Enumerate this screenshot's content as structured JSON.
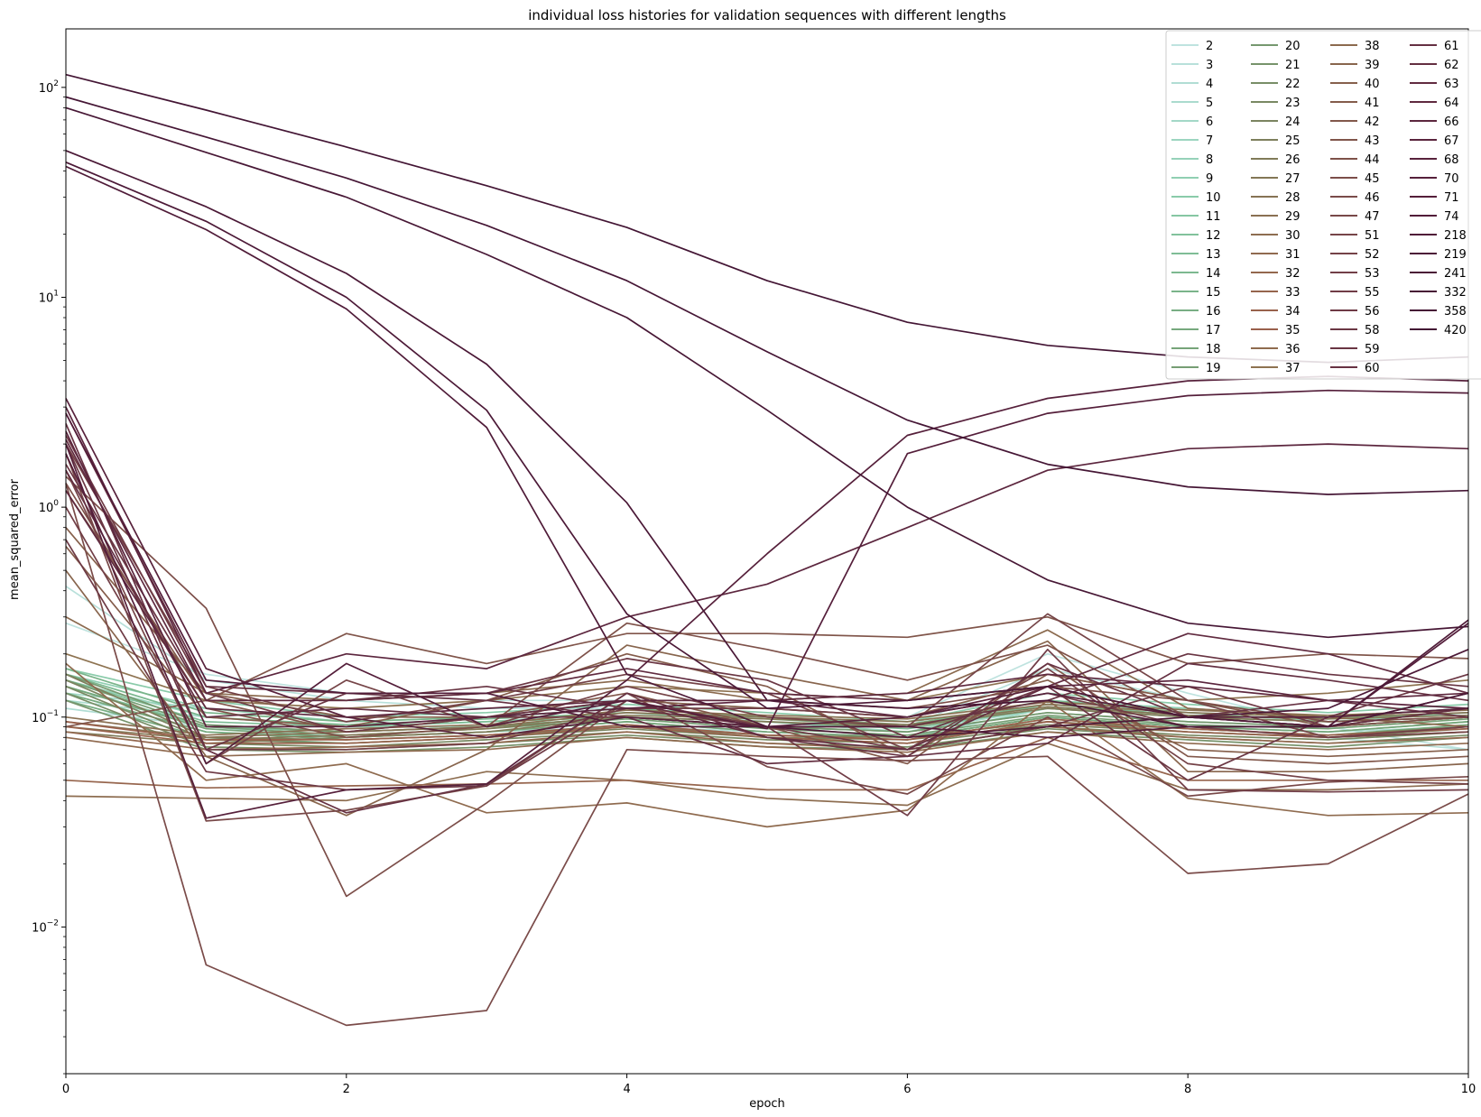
{
  "chart_data": {
    "type": "line",
    "title": "individual loss histories for validation sequences with different lengths",
    "xlabel": "epoch",
    "ylabel": "mean_squared_error",
    "x": [
      0,
      1,
      2,
      3,
      4,
      5,
      6,
      7,
      8,
      9,
      10
    ],
    "xlim": [
      0,
      10
    ],
    "ylim": [
      0.002,
      190
    ],
    "yscale": "log",
    "xticks": [
      "0",
      "2",
      "4",
      "6",
      "8",
      "10"
    ],
    "yticks": [
      "10^-2",
      "10^-1",
      "10^0",
      "10^1",
      "10^2"
    ],
    "grid": false,
    "legend_position": "top-right",
    "legend_columns": 4,
    "series": [
      {
        "name": "2",
        "color": "#bfe3df",
        "values": [
          0.28,
          0.16,
          0.13,
          0.12,
          0.12,
          0.11,
          0.1,
          0.2,
          0.13,
          0.09,
          0.07
        ]
      },
      {
        "name": "3",
        "color": "#b8e0da",
        "values": [
          0.42,
          0.15,
          0.12,
          0.11,
          0.11,
          0.1,
          0.09,
          0.17,
          0.12,
          0.08,
          0.07
        ]
      },
      {
        "name": "4",
        "color": "#b1ddd4",
        "values": [
          0.11,
          0.09,
          0.08,
          0.085,
          0.09,
          0.085,
          0.08,
          0.1,
          0.09,
          0.085,
          0.09
        ]
      },
      {
        "name": "5",
        "color": "#aadbce",
        "values": [
          0.12,
          0.1,
          0.09,
          0.09,
          0.1,
          0.09,
          0.085,
          0.11,
          0.1,
          0.09,
          0.1
        ]
      },
      {
        "name": "6",
        "color": "#a3d8c7",
        "values": [
          0.13,
          0.11,
          0.1,
          0.1,
          0.11,
          0.1,
          0.09,
          0.12,
          0.11,
          0.1,
          0.11
        ]
      },
      {
        "name": "7",
        "color": "#9cd5c0",
        "values": [
          0.14,
          0.09,
          0.085,
          0.09,
          0.1,
          0.09,
          0.08,
          0.11,
          0.1,
          0.09,
          0.1
        ]
      },
      {
        "name": "8",
        "color": "#96d2b9",
        "values": [
          0.15,
          0.1,
          0.09,
          0.095,
          0.105,
          0.095,
          0.085,
          0.115,
          0.105,
          0.095,
          0.105
        ]
      },
      {
        "name": "9",
        "color": "#90cfb2",
        "values": [
          0.16,
          0.11,
          0.095,
          0.1,
          0.11,
          0.1,
          0.09,
          0.12,
          0.11,
          0.1,
          0.11
        ]
      },
      {
        "name": "10",
        "color": "#8acbaa",
        "values": [
          0.17,
          0.12,
          0.1,
          0.105,
          0.115,
          0.105,
          0.095,
          0.13,
          0.115,
          0.105,
          0.115
        ]
      },
      {
        "name": "11",
        "color": "#86c7a3",
        "values": [
          0.13,
          0.085,
          0.08,
          0.085,
          0.095,
          0.085,
          0.08,
          0.1,
          0.09,
          0.085,
          0.095
        ]
      },
      {
        "name": "12",
        "color": "#82c29c",
        "values": [
          0.14,
          0.09,
          0.085,
          0.09,
          0.1,
          0.09,
          0.085,
          0.105,
          0.095,
          0.09,
          0.1
        ]
      },
      {
        "name": "13",
        "color": "#7fbd96",
        "values": [
          0.15,
          0.095,
          0.09,
          0.095,
          0.1,
          0.095,
          0.088,
          0.11,
          0.1,
          0.095,
          0.1
        ]
      },
      {
        "name": "14",
        "color": "#7cb890",
        "values": [
          0.16,
          0.1,
          0.092,
          0.098,
          0.105,
          0.098,
          0.09,
          0.115,
          0.102,
          0.098,
          0.105
        ]
      },
      {
        "name": "15",
        "color": "#7ab48a",
        "values": [
          0.17,
          0.105,
          0.095,
          0.1,
          0.11,
          0.1,
          0.092,
          0.12,
          0.105,
          0.1,
          0.11
        ]
      },
      {
        "name": "16",
        "color": "#78ae84",
        "values": [
          0.12,
          0.08,
          0.075,
          0.08,
          0.09,
          0.08,
          0.075,
          0.095,
          0.085,
          0.08,
          0.09
        ]
      },
      {
        "name": "17",
        "color": "#77a97e",
        "values": [
          0.13,
          0.085,
          0.078,
          0.082,
          0.092,
          0.082,
          0.078,
          0.098,
          0.088,
          0.082,
          0.092
        ]
      },
      {
        "name": "18",
        "color": "#76a479",
        "values": [
          0.14,
          0.088,
          0.08,
          0.085,
          0.095,
          0.085,
          0.08,
          0.1,
          0.09,
          0.085,
          0.095
        ]
      },
      {
        "name": "19",
        "color": "#769e74",
        "values": [
          0.15,
          0.09,
          0.082,
          0.088,
          0.098,
          0.088,
          0.082,
          0.102,
          0.092,
          0.088,
          0.098
        ]
      },
      {
        "name": "20",
        "color": "#76986f",
        "values": [
          0.16,
          0.092,
          0.085,
          0.09,
          0.1,
          0.09,
          0.085,
          0.105,
          0.095,
          0.09,
          0.1
        ]
      },
      {
        "name": "21",
        "color": "#77936b",
        "values": [
          0.12,
          0.07,
          0.068,
          0.072,
          0.08,
          0.072,
          0.07,
          0.085,
          0.078,
          0.072,
          0.08
        ]
      },
      {
        "name": "22",
        "color": "#788e67",
        "values": [
          0.13,
          0.072,
          0.07,
          0.075,
          0.082,
          0.075,
          0.072,
          0.088,
          0.08,
          0.075,
          0.082
        ]
      },
      {
        "name": "23",
        "color": "#798963",
        "values": [
          0.14,
          0.075,
          0.072,
          0.078,
          0.085,
          0.078,
          0.075,
          0.09,
          0.082,
          0.078,
          0.085
        ]
      },
      {
        "name": "24",
        "color": "#7b8460",
        "values": [
          0.15,
          0.078,
          0.075,
          0.08,
          0.088,
          0.08,
          0.078,
          0.092,
          0.085,
          0.08,
          0.088
        ]
      },
      {
        "name": "25",
        "color": "#7d7f5c",
        "values": [
          0.16,
          0.08,
          0.078,
          0.082,
          0.09,
          0.082,
          0.08,
          0.095,
          0.088,
          0.082,
          0.09
        ]
      },
      {
        "name": "26",
        "color": "#807b59",
        "values": [
          0.085,
          0.075,
          0.08,
          0.085,
          0.1,
          0.095,
          0.09,
          0.11,
          0.1,
          0.095,
          0.1
        ]
      },
      {
        "name": "27",
        "color": "#837756",
        "values": [
          0.09,
          0.078,
          0.082,
          0.088,
          0.102,
          0.098,
          0.092,
          0.112,
          0.102,
          0.098,
          0.102
        ]
      },
      {
        "name": "28",
        "color": "#867354",
        "values": [
          0.095,
          0.08,
          0.085,
          0.09,
          0.105,
          0.1,
          0.095,
          0.115,
          0.105,
          0.1,
          0.105
        ]
      },
      {
        "name": "29",
        "color": "#8a7052",
        "values": [
          0.1,
          0.082,
          0.088,
          0.092,
          0.108,
          0.102,
          0.098,
          0.118,
          0.108,
          0.102,
          0.108
        ]
      },
      {
        "name": "30",
        "color": "#8d6d50",
        "values": [
          0.042,
          0.041,
          0.04,
          0.055,
          0.05,
          0.041,
          0.038,
          0.075,
          0.045,
          0.045,
          0.048
        ]
      },
      {
        "name": "31",
        "color": "#906a4f",
        "values": [
          0.08,
          0.065,
          0.068,
          0.07,
          0.08,
          0.072,
          0.068,
          0.085,
          0.075,
          0.07,
          0.075
        ]
      },
      {
        "name": "32",
        "color": "#93674e",
        "values": [
          0.085,
          0.07,
          0.072,
          0.075,
          0.085,
          0.075,
          0.07,
          0.09,
          0.08,
          0.075,
          0.08
        ]
      },
      {
        "name": "33",
        "color": "#96654d",
        "values": [
          0.05,
          0.046,
          0.047,
          0.048,
          0.05,
          0.045,
          0.045,
          0.08,
          0.05,
          0.05,
          0.05
        ]
      },
      {
        "name": "34",
        "color": "#98624c",
        "values": [
          0.09,
          0.075,
          0.075,
          0.08,
          0.09,
          0.08,
          0.075,
          0.095,
          0.085,
          0.08,
          0.085
        ]
      },
      {
        "name": "35",
        "color": "#9a604c",
        "values": [
          0.095,
          0.078,
          0.078,
          0.082,
          0.092,
          0.082,
          0.078,
          0.098,
          0.088,
          0.082,
          0.088
        ]
      },
      {
        "name": "36",
        "color": "#8f6b4f",
        "values": [
          0.18,
          0.05,
          0.06,
          0.035,
          0.039,
          0.03,
          0.036,
          0.12,
          0.041,
          0.034,
          0.035
        ]
      },
      {
        "name": "37",
        "color": "#8e7351",
        "values": [
          0.2,
          0.12,
          0.11,
          0.12,
          0.14,
          0.13,
          0.12,
          0.16,
          0.12,
          0.13,
          0.15
        ]
      },
      {
        "name": "38",
        "color": "#8b6a4e",
        "values": [
          0.3,
          0.13,
          0.12,
          0.13,
          0.15,
          0.12,
          0.13,
          0.26,
          0.11,
          0.1,
          0.09
        ]
      },
      {
        "name": "39",
        "color": "#88654d",
        "values": [
          0.5,
          0.065,
          0.034,
          0.07,
          0.22,
          0.16,
          0.12,
          0.23,
          0.055,
          0.055,
          0.06
        ]
      },
      {
        "name": "40",
        "color": "#86604c",
        "values": [
          0.8,
          0.13,
          0.1,
          0.1,
          0.12,
          0.11,
          0.1,
          0.15,
          0.07,
          0.065,
          0.07
        ]
      },
      {
        "name": "41",
        "color": "#845c4b",
        "values": [
          0.65,
          0.1,
          0.09,
          0.12,
          0.2,
          0.14,
          0.065,
          0.16,
          0.12,
          0.09,
          0.11
        ]
      },
      {
        "name": "42",
        "color": "#82584b",
        "values": [
          1.2,
          0.12,
          0.085,
          0.1,
          0.13,
          0.09,
          0.06,
          0.18,
          0.065,
          0.06,
          0.065
        ]
      },
      {
        "name": "43",
        "color": "#80554a",
        "values": [
          0.09,
          0.12,
          0.25,
          0.18,
          0.25,
          0.25,
          0.24,
          0.3,
          0.18,
          0.2,
          0.19
        ]
      },
      {
        "name": "44",
        "color": "#7e5149",
        "values": [
          1.3,
          0.11,
          0.08,
          0.09,
          0.28,
          0.21,
          0.15,
          0.22,
          0.1,
          0.09,
          0.1
        ]
      },
      {
        "name": "45",
        "color": "#7c4e49",
        "values": [
          1.4,
          0.33,
          0.014,
          0.039,
          0.12,
          0.12,
          0.11,
          0.14,
          0.12,
          0.095,
          0.1
        ]
      },
      {
        "name": "46",
        "color": "#7a4b49",
        "values": [
          1.3,
          0.0066,
          0.0034,
          0.004,
          0.07,
          0.065,
          0.062,
          0.065,
          0.018,
          0.02,
          0.043
        ]
      },
      {
        "name": "47",
        "color": "#784848",
        "values": [
          1.8,
          0.032,
          0.036,
          0.047,
          0.13,
          0.058,
          0.043,
          0.1,
          0.042,
          0.049,
          0.052
        ]
      },
      {
        "name": "51",
        "color": "#764548",
        "values": [
          1.5,
          0.06,
          0.15,
          0.09,
          0.14,
          0.1,
          0.09,
          0.31,
          0.12,
          0.08,
          0.085
        ]
      },
      {
        "name": "52",
        "color": "#744247",
        "values": [
          2.0,
          0.14,
          0.095,
          0.12,
          0.16,
          0.13,
          0.07,
          0.17,
          0.06,
          0.05,
          0.048
        ]
      },
      {
        "name": "53",
        "color": "#723f47",
        "values": [
          1.0,
          0.07,
          0.07,
          0.075,
          0.11,
          0.11,
          0.1,
          0.13,
          0.09,
          0.08,
          0.09
        ]
      },
      {
        "name": "55",
        "color": "#703c46",
        "values": [
          2.2,
          0.13,
          0.085,
          0.1,
          0.1,
          0.09,
          0.034,
          0.21,
          0.045,
          0.044,
          0.045
        ]
      },
      {
        "name": "56",
        "color": "#6e3a45",
        "values": [
          0.7,
          0.055,
          0.045,
          0.047,
          0.12,
          0.09,
          0.07,
          0.09,
          0.14,
          0.09,
          0.13
        ]
      },
      {
        "name": "58",
        "color": "#6b3744",
        "values": [
          2.0,
          0.07,
          0.13,
          0.13,
          0.19,
          0.15,
          0.08,
          0.14,
          0.05,
          0.1,
          0.16
        ]
      },
      {
        "name": "59",
        "color": "#693543",
        "values": [
          1.6,
          0.12,
          0.12,
          0.14,
          0.11,
          0.09,
          0.09,
          0.12,
          0.2,
          0.16,
          0.14
        ]
      },
      {
        "name": "60",
        "color": "#673243",
        "values": [
          2.5,
          0.07,
          0.035,
          0.048,
          0.13,
          0.08,
          0.065,
          0.18,
          0.1,
          0.12,
          0.1
        ]
      },
      {
        "name": "61",
        "color": "#653042",
        "values": [
          2.8,
          0.14,
          0.13,
          0.12,
          0.1,
          0.06,
          0.065,
          0.075,
          0.18,
          0.15,
          0.12
        ]
      },
      {
        "name": "62",
        "color": "#632e41",
        "values": [
          1.5,
          0.1,
          0.11,
          0.1,
          0.12,
          0.08,
          0.07,
          0.14,
          0.1,
          0.09,
          0.11
        ]
      },
      {
        "name": "63",
        "color": "#612b40",
        "values": [
          2.1,
          0.12,
          0.12,
          0.13,
          0.17,
          0.13,
          0.12,
          0.14,
          0.25,
          0.2,
          0.13
        ]
      },
      {
        "name": "64",
        "color": "#5f293f",
        "values": [
          1.2,
          0.11,
          0.1,
          0.11,
          0.12,
          0.12,
          0.13,
          0.16,
          0.14,
          0.12,
          0.13
        ]
      },
      {
        "name": "66",
        "color": "#5c263e",
        "values": [
          3.0,
          0.13,
          0.2,
          0.17,
          0.3,
          0.43,
          0.8,
          1.5,
          1.9,
          2.0,
          1.9
        ]
      },
      {
        "name": "67",
        "color": "#5a243d",
        "values": [
          2.3,
          0.09,
          0.09,
          0.1,
          0.11,
          0.12,
          0.1,
          0.14,
          0.15,
          0.12,
          0.11
        ]
      },
      {
        "name": "68",
        "color": "#58223c",
        "values": [
          3.3,
          0.17,
          0.1,
          0.08,
          0.1,
          0.09,
          0.1,
          0.13,
          0.1,
          0.1,
          0.11
        ]
      },
      {
        "name": "70",
        "color": "#56203b",
        "values": [
          2.0,
          0.033,
          0.045,
          0.048,
          0.15,
          0.6,
          2.2,
          3.3,
          4.0,
          4.2,
          4.0
        ]
      },
      {
        "name": "71",
        "color": "#541e3a",
        "values": [
          1.8,
          0.06,
          0.18,
          0.09,
          0.12,
          0.088,
          1.8,
          2.8,
          3.4,
          3.6,
          3.5
        ]
      },
      {
        "name": "74",
        "color": "#521c39",
        "values": [
          2.8,
          0.15,
          0.13,
          0.13,
          0.09,
          0.09,
          0.09,
          0.08,
          0.09,
          0.09,
          0.28
        ]
      },
      {
        "name": "218",
        "color": "#4f1b38",
        "values": [
          42,
          21,
          8.8,
          2.4,
          0.16,
          0.09,
          0.08,
          0.09,
          0.1,
          0.09,
          0.29
        ]
      },
      {
        "name": "219",
        "color": "#4c1937",
        "values": [
          44,
          23,
          10,
          2.9,
          0.31,
          0.11,
          0.12,
          0.14,
          0.1,
          0.11,
          0.21
        ]
      },
      {
        "name": "241",
        "color": "#4a1836",
        "values": [
          50,
          27,
          13,
          4.8,
          1.05,
          0.12,
          0.11,
          0.12,
          0.09,
          0.09,
          0.13
        ]
      },
      {
        "name": "332",
        "color": "#471735",
        "values": [
          80,
          49,
          30,
          16,
          8.0,
          2.9,
          1.0,
          0.45,
          0.28,
          0.24,
          0.27
        ]
      },
      {
        "name": "358",
        "color": "#451635",
        "values": [
          90,
          58,
          37,
          22,
          12,
          5.5,
          2.6,
          1.6,
          1.25,
          1.15,
          1.2
        ]
      },
      {
        "name": "420",
        "color": "#431534",
        "values": [
          115,
          78,
          52,
          34,
          21.5,
          12,
          7.6,
          5.9,
          5.2,
          4.9,
          5.2
        ]
      }
    ]
  }
}
